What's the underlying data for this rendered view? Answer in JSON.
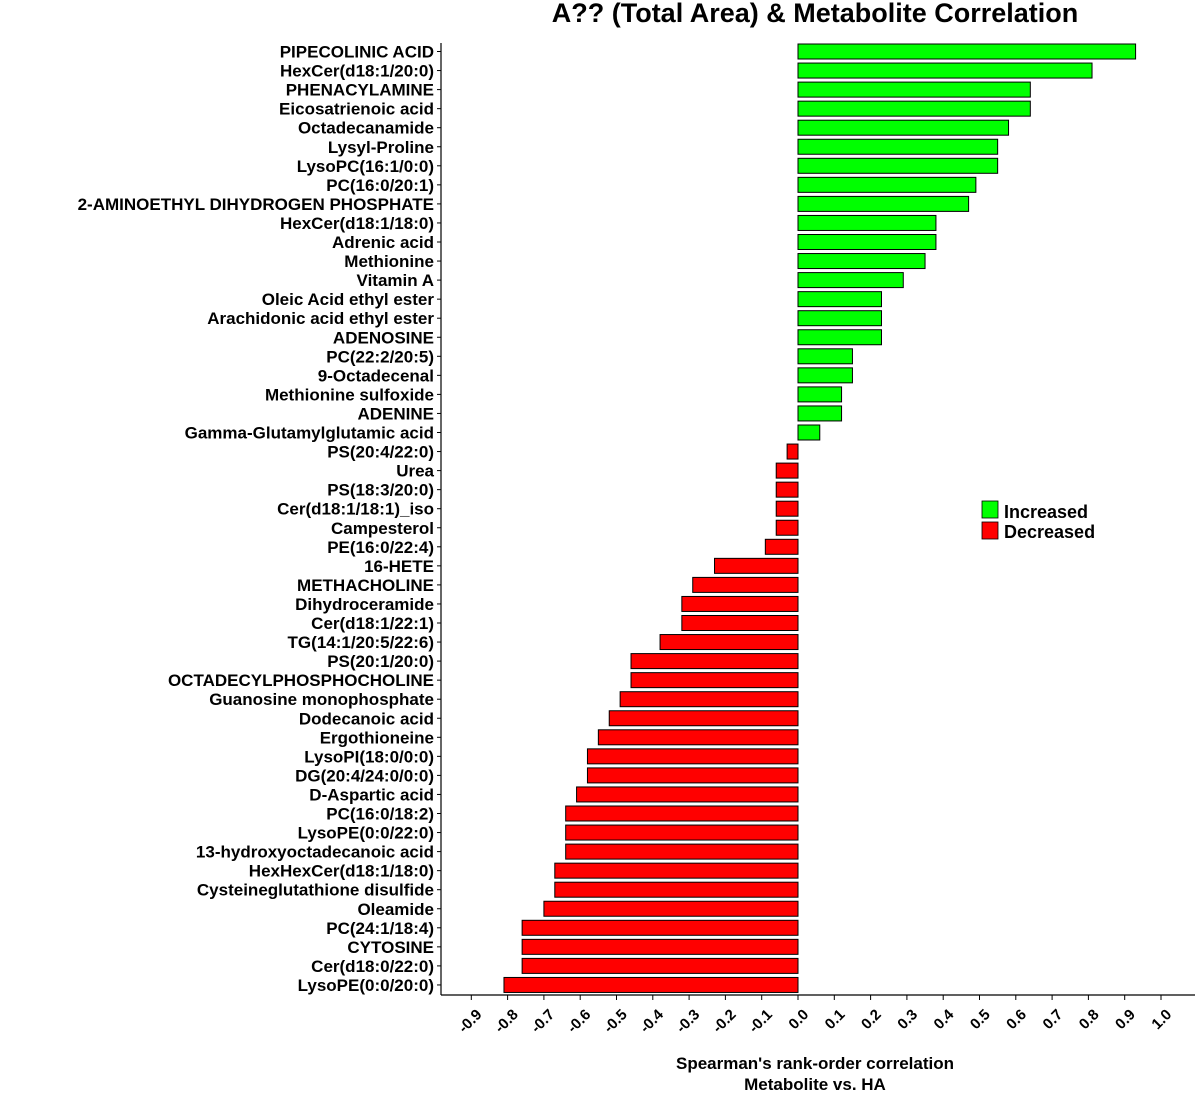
{
  "chart_data": {
    "type": "bar",
    "orientation": "horizontal",
    "title": "A?? (Total Area) & Metabolite Correlation",
    "xlabel": [
      "Spearman's rank-order correlation",
      "Metabolite vs. HA"
    ],
    "ylabel": "",
    "xlim": [
      -1.0,
      1.1
    ],
    "xticks": [
      "-0.9",
      "-0.8",
      "-0.7",
      "-0.6",
      "-0.5",
      "-0.4",
      "-0.3",
      "-0.2",
      "-0.1",
      "0.0",
      "0.1",
      "0.2",
      "0.3",
      "0.4",
      "0.5",
      "0.6",
      "0.7",
      "0.8",
      "0.9",
      "1.0"
    ],
    "grid": false,
    "legend": {
      "placement": "right",
      "entries": [
        {
          "label": "Increased",
          "color": "#00FF00"
        },
        {
          "label": "Decreased",
          "color": "#FF0000"
        }
      ]
    },
    "colors": {
      "increased": "#00FF00",
      "decreased": "#FF0000",
      "outline": "#000000"
    },
    "categories": [
      "PIPECOLINIC ACID",
      "HexCer(d18:1/20:0)",
      "PHENACYLAMINE",
      "Eicosatrienoic acid",
      "Octadecanamide",
      "Lysyl-Proline",
      "LysoPC(16:1/0:0)",
      "PC(16:0/20:1)",
      "2-AMINOETHYL DIHYDROGEN PHOSPHATE",
      "HexCer(d18:1/18:0)",
      "Adrenic acid",
      "Methionine",
      "Vitamin A",
      "Oleic Acid ethyl ester",
      "Arachidonic acid ethyl ester",
      "ADENOSINE",
      "PC(22:2/20:5)",
      "9-Octadecenal",
      "Methionine sulfoxide",
      "ADENINE",
      "Gamma-Glutamylglutamic acid",
      "PS(20:4/22:0)",
      "Urea",
      "PS(18:3/20:0)",
      "Cer(d18:1/18:1)_iso",
      "Campesterol",
      "PE(16:0/22:4)",
      "16-HETE",
      "METHACHOLINE",
      "Dihydroceramide",
      "Cer(d18:1/22:1)",
      "TG(14:1/20:5/22:6)",
      "PS(20:1/20:0)",
      "OCTADECYLPHOSPHOCHOLINE",
      "Guanosine monophosphate",
      "Dodecanoic acid",
      "Ergothioneine",
      "LysoPI(18:0/0:0)",
      "DG(20:4/24:0/0:0)",
      "D-Aspartic acid",
      "PC(16:0/18:2)",
      "LysoPE(0:0/22:0)",
      "13-hydroxyoctadecanoic acid",
      "HexHexCer(d18:1/18:0)",
      "Cysteineglutathione disulfide",
      "Oleamide",
      "PC(24:1/18:4)",
      "CYTOSINE",
      "Cer(d18:0/22:0)",
      "LysoPE(0:0/20:0)"
    ],
    "values": [
      0.93,
      0.81,
      0.64,
      0.64,
      0.58,
      0.55,
      0.55,
      0.49,
      0.47,
      0.38,
      0.38,
      0.35,
      0.29,
      0.23,
      0.23,
      0.23,
      0.15,
      0.15,
      0.12,
      0.12,
      0.06,
      -0.03,
      -0.06,
      -0.06,
      -0.06,
      -0.06,
      -0.09,
      -0.23,
      -0.29,
      -0.32,
      -0.32,
      -0.38,
      -0.46,
      -0.46,
      -0.49,
      -0.52,
      -0.55,
      -0.58,
      -0.58,
      -0.61,
      -0.64,
      -0.64,
      -0.64,
      -0.67,
      -0.67,
      -0.7,
      -0.76,
      -0.76,
      -0.76,
      -0.81
    ]
  }
}
